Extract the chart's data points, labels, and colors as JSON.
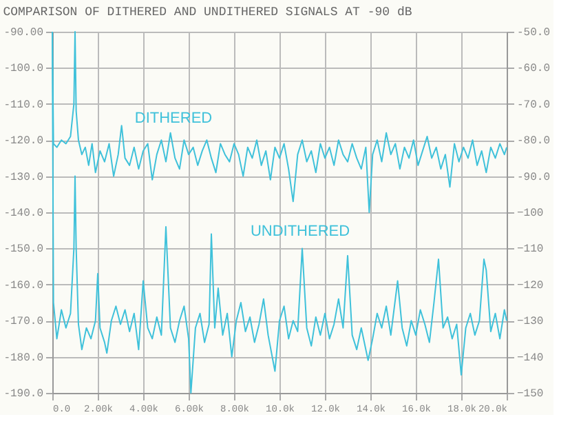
{
  "chart_data": {
    "type": "line",
    "title": "COMPARISON OF DITHERED AND UNDITHERED SIGNALS AT -90 dB",
    "series": [
      {
        "color": "#3fc1da",
        "x": [
          0,
          50,
          200,
          400,
          600,
          800,
          950,
          1000,
          1050,
          1150,
          1300,
          1450,
          1600,
          1750,
          1900,
          2100,
          2300,
          2500,
          2700,
          2900,
          3050,
          3200,
          3400,
          3600,
          3800,
          4000,
          4200,
          4400,
          4600,
          4800,
          5000,
          5200,
          5400,
          5600,
          5800,
          6000,
          6200,
          6400,
          6600,
          6800,
          7000,
          7200,
          7400,
          7600,
          7800,
          8000,
          8200,
          8400,
          8600,
          8800,
          9000,
          9200,
          9400,
          9600,
          9800,
          10000,
          10200,
          10400,
          10600,
          10800,
          11000,
          11200,
          11400,
          11600,
          11800,
          12000,
          12200,
          12400,
          12600,
          12800,
          13000,
          13200,
          13400,
          13600,
          13800,
          13950,
          14100,
          14300,
          14500,
          14700,
          14900,
          15100,
          15300,
          15500,
          15700,
          15900,
          16100,
          16300,
          16500,
          16700,
          16900,
          17100,
          17300,
          17500,
          17700,
          17900,
          18100,
          18300,
          18500,
          18700,
          18900,
          19100,
          19300,
          19500,
          19700,
          19900,
          20000
        ],
        "values": [
          -90,
          -121,
          -122,
          -120,
          -121,
          -119,
          -110,
          -90,
          -112,
          -120,
          -124,
          -122,
          -127,
          -121,
          -129,
          -123,
          -126,
          -121,
          -130,
          -124,
          -116,
          -125,
          -127,
          -122,
          -128,
          -123,
          -121,
          -131,
          -124,
          -120,
          -126,
          -118,
          -125,
          -128,
          -120,
          -124,
          -122,
          -127,
          -123,
          -120,
          -125,
          -129,
          -121,
          -124,
          -126,
          -121,
          -124,
          -130,
          -122,
          -125,
          -120,
          -127,
          -123,
          -131,
          -122,
          -125,
          -121,
          -128,
          -137,
          -124,
          -120,
          -126,
          -123,
          -129,
          -121,
          -125,
          -122,
          -127,
          -120,
          -124,
          -126,
          -121,
          -125,
          -128,
          -122,
          -140,
          -124,
          -120,
          -126,
          -118,
          -124,
          -121,
          -128,
          -122,
          -125,
          -120,
          -127,
          -123,
          -119,
          -125,
          -122,
          -128,
          -124,
          -133,
          -121,
          -126,
          -122,
          -125,
          -120,
          -127,
          -123,
          -129,
          -122,
          -125,
          -121,
          -124,
          -122
        ]
      },
      {
        "color": "#3fc1da",
        "x": [
          0,
          50,
          200,
          400,
          600,
          800,
          950,
          1000,
          1050,
          1150,
          1300,
          1500,
          1700,
          1900,
          2000,
          2100,
          2300,
          2400,
          2600,
          2800,
          3000,
          3200,
          3400,
          3600,
          3800,
          4000,
          4200,
          4400,
          4600,
          4800,
          5000,
          5200,
          5400,
          5600,
          5800,
          6000,
          6100,
          6300,
          6500,
          6700,
          6900,
          7000,
          7150,
          7300,
          7500,
          7700,
          7900,
          8100,
          8300,
          8500,
          8700,
          8900,
          9100,
          9300,
          9500,
          9800,
          10000,
          10200,
          10400,
          10600,
          10800,
          11000,
          11200,
          11400,
          11600,
          11800,
          12000,
          12200,
          12400,
          12600,
          12800,
          13000,
          13200,
          13400,
          13600,
          13900,
          14100,
          14300,
          14500,
          14700,
          14900,
          15200,
          15400,
          15600,
          15800,
          16000,
          16200,
          16400,
          16600,
          16800,
          17000,
          17200,
          17400,
          17600,
          17800,
          18000,
          18200,
          18400,
          18600,
          18800,
          19000,
          19100,
          19300,
          19500,
          19700,
          19900,
          20000
        ],
        "values": [
          -90,
          -165,
          -175,
          -167,
          -172,
          -168,
          -150,
          -130,
          -150,
          -171,
          -178,
          -172,
          -175,
          -170,
          -157,
          -172,
          -176,
          -179,
          -170,
          -166,
          -171,
          -167,
          -173,
          -168,
          -178,
          -159,
          -172,
          -175,
          -169,
          -174,
          -144,
          -172,
          -176,
          -170,
          -166,
          -175,
          -190,
          -172,
          -168,
          -176,
          -171,
          -146,
          -172,
          -161,
          -174,
          -168,
          -180,
          -170,
          -165,
          -173,
          -169,
          -176,
          -171,
          -164,
          -174,
          -184,
          -170,
          -166,
          -175,
          -170,
          -173,
          -150,
          -172,
          -177,
          -169,
          -174,
          -168,
          -175,
          -171,
          -164,
          -172,
          -152,
          -174,
          -178,
          -172,
          -181,
          -175,
          -168,
          -172,
          -166,
          -174,
          -159,
          -172,
          -177,
          -170,
          -174,
          -167,
          -171,
          -176,
          -165,
          -153,
          -172,
          -169,
          -175,
          -171,
          -185,
          -172,
          -168,
          -174,
          -170,
          -153,
          -156,
          -173,
          -168,
          -175,
          -167,
          -170
        ]
      }
    ],
    "annotations": [
      "DITHERED",
      "UNDITHERED"
    ],
    "xlim": [
      0,
      20000
    ],
    "xticks": [
      {
        "value": 0,
        "label": "0.0"
      },
      {
        "value": 2000,
        "label": "2.00k"
      },
      {
        "value": 4000,
        "label": "4.00k"
      },
      {
        "value": 6000,
        "label": "6.00k"
      },
      {
        "value": 8000,
        "label": "8.00k"
      },
      {
        "value": 10000,
        "label": "10.0k"
      },
      {
        "value": 12000,
        "label": "12.0k"
      },
      {
        "value": 14000,
        "label": "14.0k"
      },
      {
        "value": 16000,
        "label": "16.0k"
      },
      {
        "value": 18000,
        "label": "18.0k"
      },
      {
        "value": 20000,
        "label": "20.0k"
      }
    ],
    "ylim": [
      -190,
      -90
    ],
    "yticks": [
      {
        "value": -90,
        "label": "-90.00"
      },
      {
        "value": -100,
        "label": "-100.0"
      },
      {
        "value": -110,
        "label": "-110.0"
      },
      {
        "value": -120,
        "label": "-120.0"
      },
      {
        "value": -130,
        "label": "-130.0"
      },
      {
        "value": -140,
        "label": "-140.0"
      },
      {
        "value": -150,
        "label": "-150.0"
      },
      {
        "value": -160,
        "label": "-160.0"
      },
      {
        "value": -170,
        "label": "-170.0"
      },
      {
        "value": -180,
        "label": "-180.0"
      },
      {
        "value": -190,
        "label": "-190.0"
      }
    ],
    "y2lim": [
      -150,
      -50
    ],
    "y2ticks": [
      {
        "value": -50,
        "label": "-50.0"
      },
      {
        "value": -60,
        "label": "-60.0"
      },
      {
        "value": -70,
        "label": "-70.0"
      },
      {
        "value": -80,
        "label": "-80.0"
      },
      {
        "value": -90,
        "label": "-90.0"
      },
      -100,
      -110,
      -120,
      -130,
      -140,
      -150
    ],
    "grid": true,
    "marker": "none",
    "line_style": "solid"
  }
}
